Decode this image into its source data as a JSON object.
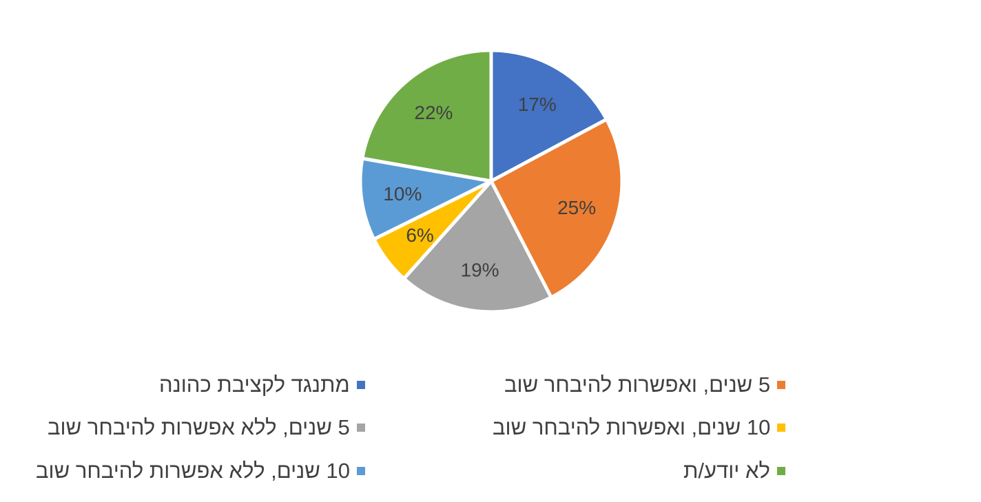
{
  "chart_data": {
    "type": "pie",
    "title": "",
    "slices": [
      {
        "label": "מתנגד לקציבת כהונה",
        "value": 17,
        "display": "17%",
        "color": "#4472C4"
      },
      {
        "label": "5 שנים, ואפשרות להיבחר שוב",
        "value": 25,
        "display": "25%",
        "color": "#ED7D31"
      },
      {
        "label": "5 שנים, ללא אפשרות להיבחר שוב",
        "value": 19,
        "display": "19%",
        "color": "#A5A5A5"
      },
      {
        "label": "10 שנים, ואפשרות להיבחר שוב",
        "value": 6,
        "display": "6%",
        "color": "#FFC000"
      },
      {
        "label": "10 שנים, ללא אפשרות להיבחר שוב",
        "value": 10,
        "display": "10%",
        "color": "#5B9BD5"
      },
      {
        "label": "לא יודע/ת",
        "value": 22,
        "display": "22%",
        "color": "#70AD47"
      }
    ],
    "legend_position": "bottom",
    "start_angle": "12 o'clock",
    "direction": "clockwise"
  }
}
